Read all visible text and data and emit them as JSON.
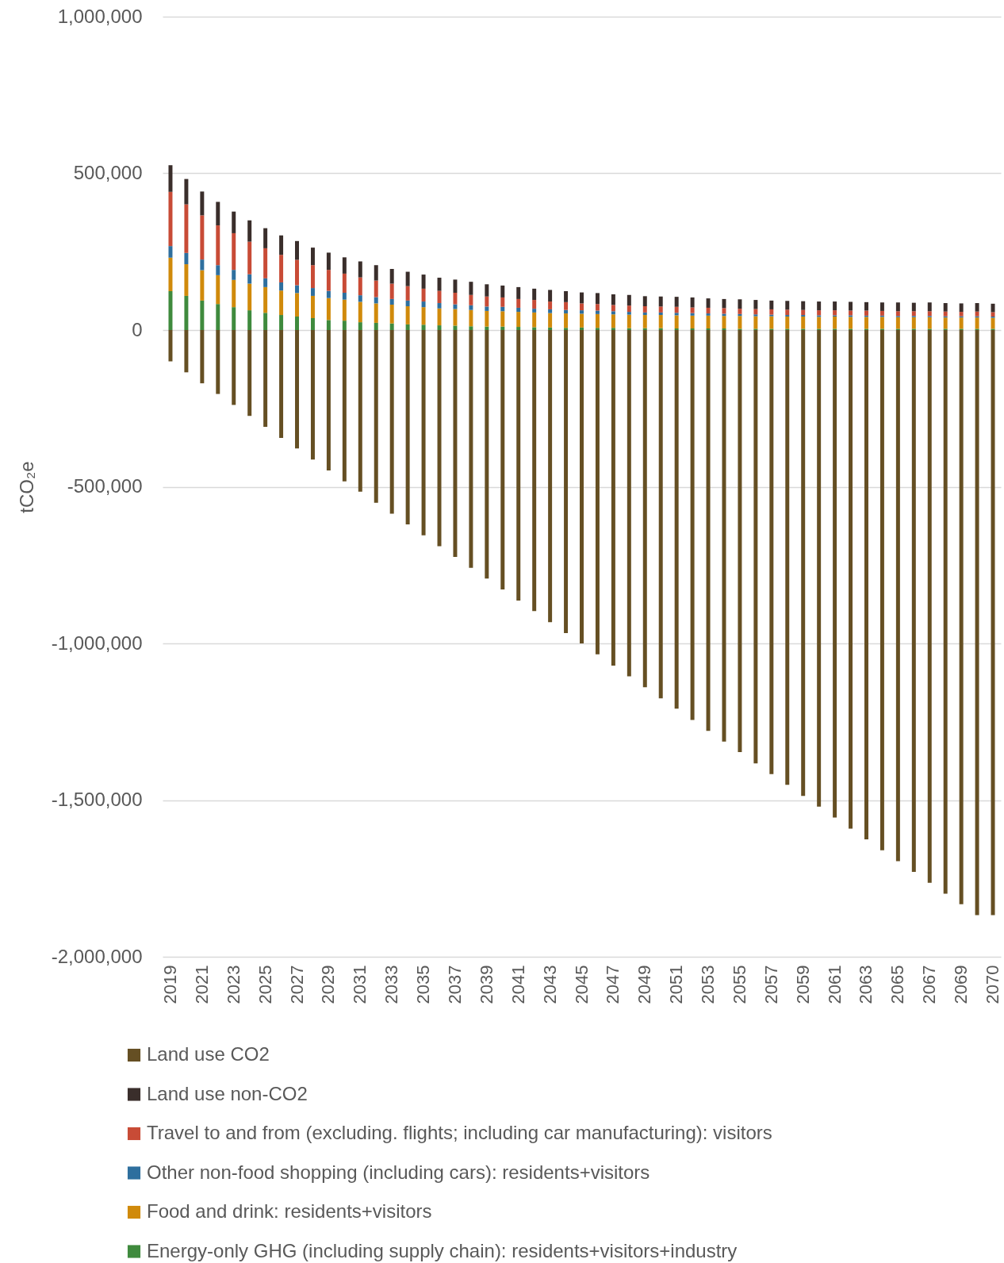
{
  "chart_data": {
    "type": "bar",
    "stacked": true,
    "ylabel": "tCO₂e",
    "legend": "bottom",
    "grid": "y",
    "categories": [
      "2019",
      null,
      "2021",
      null,
      "2023",
      null,
      "2025",
      null,
      "2027",
      null,
      "2029",
      null,
      "2031",
      null,
      "2033",
      null,
      "2035",
      null,
      "2037",
      null,
      "2039",
      null,
      "2041",
      null,
      "2043",
      null,
      "2045",
      null,
      "2047",
      null,
      "2049",
      null,
      "2051",
      null,
      "2053",
      null,
      "2055",
      null,
      "2057",
      null,
      "2059",
      null,
      "2061",
      null,
      "2063",
      null,
      "2065",
      null,
      "2067",
      null,
      "2069",
      null,
      "2070"
    ],
    "ylim": [
      -2000000,
      1000000
    ],
    "yticks": [
      {
        "value": -2000000,
        "label": "-2,000,000"
      },
      {
        "value": -1500000,
        "label": "-1,500,000"
      },
      {
        "value": -1000000,
        "label": "-1,000,000"
      },
      {
        "value": -500000,
        "label": "-500,000"
      },
      0,
      {
        "value": 500000,
        "label": "500,000"
      },
      {
        "value": 1000000,
        "label": "1,000,000"
      }
    ],
    "series": [
      {
        "name": "Energy-only GHG (including supply chain): residents+visitors+industry",
        "color": "#3f8a3d",
        "values": [
          124000,
          109000,
          94000,
          83000,
          73000,
          63000,
          55000,
          48000,
          43000,
          38000,
          32000,
          30000,
          25000,
          23000,
          21000,
          18000,
          17000,
          15000,
          14000,
          12000,
          11000,
          11000,
          10000,
          9000,
          8000,
          7000,
          8000,
          7000,
          7000,
          6000,
          6000,
          6000,
          5000,
          5000,
          5000,
          5000,
          4000,
          4000,
          4000,
          4000,
          4000,
          4000,
          4000,
          4000,
          4000,
          4000,
          4000,
          4000,
          4000,
          4000,
          4000,
          4000,
          4000
        ]
      },
      {
        "name": "Food and drink: residents+visitors",
        "color": "#d08a0b",
        "values": [
          107000,
          101000,
          97000,
          92000,
          87000,
          85000,
          82000,
          78000,
          75000,
          71000,
          70000,
          67000,
          65000,
          62000,
          60000,
          58000,
          56000,
          54000,
          53000,
          52000,
          50000,
          49000,
          48000,
          47000,
          46000,
          46000,
          44000,
          44000,
          43000,
          43000,
          42000,
          42000,
          42000,
          41000,
          41000,
          40000,
          41000,
          40000,
          40000,
          39000,
          39000,
          38000,
          39000,
          38000,
          38000,
          38000,
          37000,
          37000,
          37000,
          36000,
          36000,
          36000,
          35000
        ]
      },
      {
        "name": "Other non-food shopping (including cars): residents+visitors",
        "color": "#2e6f9e",
        "values": [
          37000,
          36000,
          34000,
          32000,
          32000,
          30000,
          28000,
          26000,
          25000,
          25000,
          23000,
          22000,
          21000,
          20000,
          18000,
          18000,
          18000,
          17000,
          15000,
          15000,
          14000,
          14000,
          13000,
          12000,
          12000,
          11000,
          11000,
          11000,
          10000,
          9000,
          8000,
          8000,
          8000,
          8000,
          7000,
          7000,
          6000,
          6000,
          5000,
          5000,
          5000,
          5000,
          4000,
          5000,
          4000,
          4000,
          4000,
          4000,
          4000,
          4000,
          4000,
          4000,
          4000
        ]
      },
      {
        "name": "Travel to and from (excluding. flights; including car manufacturing): visitors",
        "color": "#c84b36",
        "values": [
          173000,
          155000,
          141000,
          127000,
          117000,
          104000,
          96000,
          88000,
          81000,
          73000,
          67000,
          61000,
          57000,
          53000,
          49000,
          46000,
          41000,
          39000,
          37000,
          33000,
          32000,
          30000,
          28000,
          28000,
          25000,
          25000,
          22000,
          21000,
          20000,
          20000,
          20000,
          19000,
          19000,
          18000,
          18000,
          18000,
          17000,
          17000,
          17000,
          17000,
          16000,
          16000,
          16000,
          15000,
          16000,
          15000,
          15000,
          15000,
          15000,
          15000,
          14000,
          15000,
          14000
        ]
      },
      {
        "name": "Land use non-CO2",
        "color": "#3a2e2b",
        "values": [
          85000,
          81000,
          76000,
          75000,
          69000,
          68000,
          64000,
          62000,
          60000,
          56000,
          55000,
          52000,
          51000,
          49000,
          47000,
          46000,
          45000,
          42000,
          42000,
          42000,
          39000,
          38000,
          38000,
          36000,
          37000,
          35000,
          35000,
          35000,
          34000,
          34000,
          32000,
          32000,
          32000,
          32000,
          30000,
          29000,
          30000,
          29000,
          28000,
          28000,
          28000,
          28000,
          28000,
          28000,
          27000,
          27000,
          28000,
          27000,
          28000,
          27000,
          27000,
          27000,
          27000
        ]
      },
      {
        "name": "Land use CO2",
        "color": "#654f23",
        "values": [
          -100000,
          -135000,
          -170000,
          -204000,
          -239000,
          -274000,
          -309000,
          -344000,
          -378000,
          -413000,
          -448000,
          -483000,
          -516000,
          -551000,
          -586000,
          -620000,
          -655000,
          -690000,
          -724000,
          -759000,
          -793000,
          -828000,
          -863000,
          -897000,
          -932000,
          -967000,
          -1000000,
          -1035000,
          -1071000,
          -1105000,
          -1140000,
          -1175000,
          -1208000,
          -1244000,
          -1279000,
          -1313000,
          -1347000,
          -1383000,
          -1417000,
          -1451000,
          -1487000,
          -1521000,
          -1556000,
          -1591000,
          -1625000,
          -1660000,
          -1695000,
          -1729000,
          -1764000,
          -1799000,
          -1832000,
          -1867000,
          -1867000
        ]
      }
    ]
  }
}
